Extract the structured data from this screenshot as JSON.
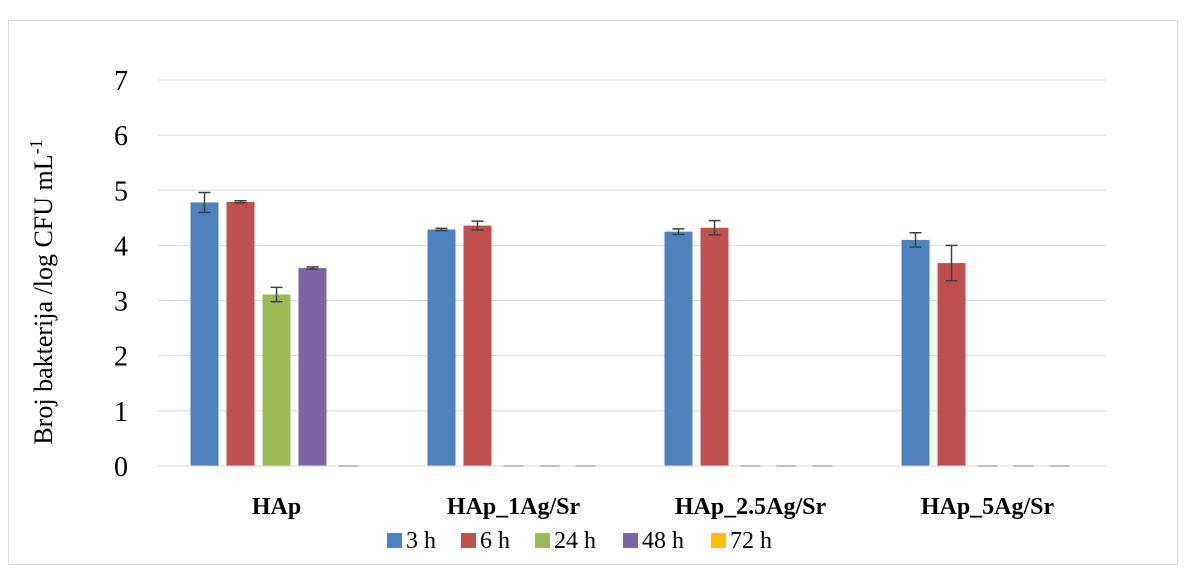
{
  "chart_data": {
    "type": "bar",
    "title": "",
    "xlabel": "",
    "ylabel": "Broj bakterija /log CFU mL",
    "ylabel_superscript": "-1",
    "ylim": [
      0,
      7
    ],
    "yticks": [
      0,
      1,
      2,
      3,
      4,
      5,
      6,
      7
    ],
    "grid": true,
    "legend": "bottom",
    "categories": [
      "HAp",
      "HAp_1Ag/Sr",
      "HAp_2.5Ag/Sr",
      "HAp_5Ag/Sr"
    ],
    "series": [
      {
        "name": "3 h",
        "color": "#4f81bd",
        "values": [
          4.78,
          4.29,
          4.25,
          4.1
        ],
        "errors": [
          0.18,
          0.02,
          0.05,
          0.13
        ]
      },
      {
        "name": "6 h",
        "color": "#c0504d",
        "values": [
          4.79,
          4.36,
          4.32,
          3.68
        ],
        "errors": [
          0.02,
          0.08,
          0.13,
          0.32
        ]
      },
      {
        "name": "24 h",
        "color": "#9bbb59",
        "values": [
          3.11,
          0,
          0,
          0
        ],
        "errors": [
          0.13,
          0,
          0,
          0
        ]
      },
      {
        "name": "48 h",
        "color": "#8064a2",
        "values": [
          3.59,
          0,
          0,
          0
        ],
        "errors": [
          0.02,
          0,
          0,
          0
        ]
      },
      {
        "name": "72 h",
        "color": "#ffc000",
        "values": [
          0,
          0,
          0,
          0
        ],
        "errors": [
          0,
          0,
          0,
          0
        ]
      }
    ]
  }
}
